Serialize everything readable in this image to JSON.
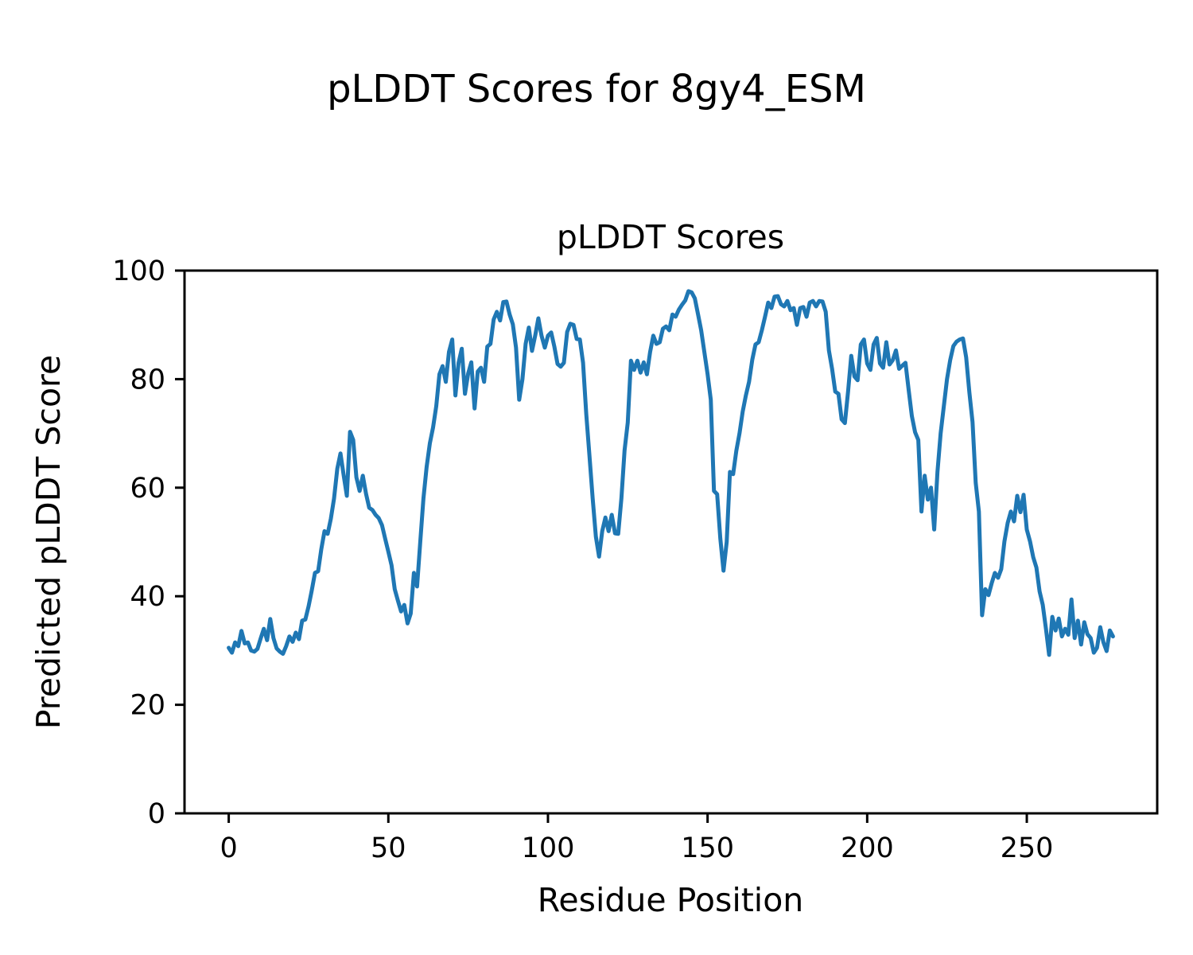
{
  "figure": {
    "suptitle": "pLDDT Scores for 8gy4_ESM",
    "background": "#ffffff",
    "text_color": "#000000"
  },
  "chart_data": {
    "type": "line",
    "title": "pLDDT Scores",
    "xlabel": "Residue Position",
    "ylabel": "Predicted pLDDT Score",
    "xlim": [
      -13.85,
      290.85
    ],
    "ylim": [
      0,
      100
    ],
    "xticks": [
      0,
      50,
      100,
      150,
      200,
      250
    ],
    "yticks": [
      0,
      20,
      40,
      60,
      80,
      100
    ],
    "grid": false,
    "legend": "none",
    "series": [
      {
        "name": "pLDDT",
        "color": "#1f77b4",
        "x_start": 0,
        "x_step": 1,
        "values": [
          30.5,
          29.6,
          31.5,
          30.8,
          33.6,
          31.3,
          31.5,
          30.0,
          29.8,
          30.3,
          32.2,
          34.0,
          31.9,
          35.8,
          32.3,
          30.4,
          29.8,
          29.4,
          30.8,
          32.6,
          31.6,
          33.3,
          32.1,
          35.5,
          35.7,
          38.1,
          41.0,
          44.3,
          44.6,
          48.7,
          52.0,
          51.5,
          54.3,
          58.0,
          63.5,
          66.3,
          62.3,
          58.5,
          70.3,
          68.8,
          61.9,
          59.4,
          62.2,
          58.9,
          56.3,
          55.9,
          55.0,
          54.4,
          53.1,
          50.6,
          48.2,
          45.7,
          41.3,
          39.2,
          37.2,
          38.4,
          35.0,
          36.8,
          44.3,
          41.8,
          50.0,
          58.0,
          63.8,
          68.2,
          71.1,
          75.0,
          80.9,
          82.4,
          79.5,
          85.0,
          87.3,
          77.0,
          83.0,
          85.6,
          77.3,
          81.0,
          83.1,
          74.6,
          81.4,
          82.1,
          79.5,
          86.0,
          86.5,
          91.0,
          92.4,
          90.8,
          94.2,
          94.3,
          91.9,
          90.1,
          85.8,
          76.2,
          80.0,
          86.5,
          89.5,
          85.2,
          88.0,
          91.2,
          88.0,
          85.8,
          88.0,
          88.6,
          86.0,
          82.8,
          82.3,
          83.0,
          88.7,
          90.2,
          90.0,
          87.4,
          87.3,
          83.0,
          73.6,
          66.0,
          58.0,
          51.0,
          47.3,
          52.0,
          54.5,
          52.0,
          55.0,
          51.6,
          51.5,
          58.0,
          66.9,
          72.0,
          83.4,
          81.7,
          83.4,
          81.2,
          83.1,
          80.9,
          85.0,
          88.0,
          86.5,
          86.8,
          89.3,
          89.7,
          89.0,
          91.9,
          91.5,
          92.8,
          93.7,
          94.5,
          96.2,
          96.0,
          94.9,
          92.0,
          89.0,
          85.0,
          80.9,
          76.2,
          59.4,
          58.8,
          50.6,
          44.7,
          50.0,
          62.9,
          62.5,
          66.8,
          70.0,
          74.0,
          77.0,
          79.5,
          83.6,
          86.4,
          86.8,
          89.0,
          91.5,
          94.1,
          93.1,
          95.2,
          95.3,
          93.8,
          93.4,
          94.4,
          92.7,
          93.1,
          90.0,
          93.1,
          93.3,
          91.5,
          94.1,
          94.4,
          93.4,
          94.4,
          94.3,
          92.4,
          85.3,
          81.9,
          77.7,
          77.3,
          72.6,
          71.9,
          77.7,
          84.3,
          80.5,
          79.8,
          86.4,
          87.3,
          82.9,
          81.7,
          86.4,
          87.6,
          82.9,
          82.1,
          86.8,
          82.7,
          83.5,
          85.3,
          81.9,
          82.5,
          83.0,
          78.0,
          73.2,
          70.2,
          68.8,
          55.6,
          62.2,
          57.8,
          60.0,
          52.3,
          62.9,
          70.0,
          75.0,
          80.0,
          83.5,
          86.1,
          86.9,
          87.3,
          87.5,
          84.0,
          77.6,
          72.1,
          60.9,
          55.6,
          36.5,
          41.3,
          40.2,
          42.4,
          44.3,
          43.4,
          45.0,
          50.1,
          53.5,
          55.6,
          53.8,
          58.5,
          55.5,
          58.7,
          52.3,
          50.1,
          47.2,
          45.3,
          40.9,
          38.4,
          34.0,
          29.2,
          36.2,
          33.7,
          35.9,
          32.6,
          34.0,
          32.9,
          39.4,
          32.3,
          35.5,
          31.1,
          35.2,
          33.0,
          32.3,
          29.6,
          30.5,
          34.3,
          31.5,
          29.9,
          33.7,
          32.6
        ]
      }
    ]
  }
}
